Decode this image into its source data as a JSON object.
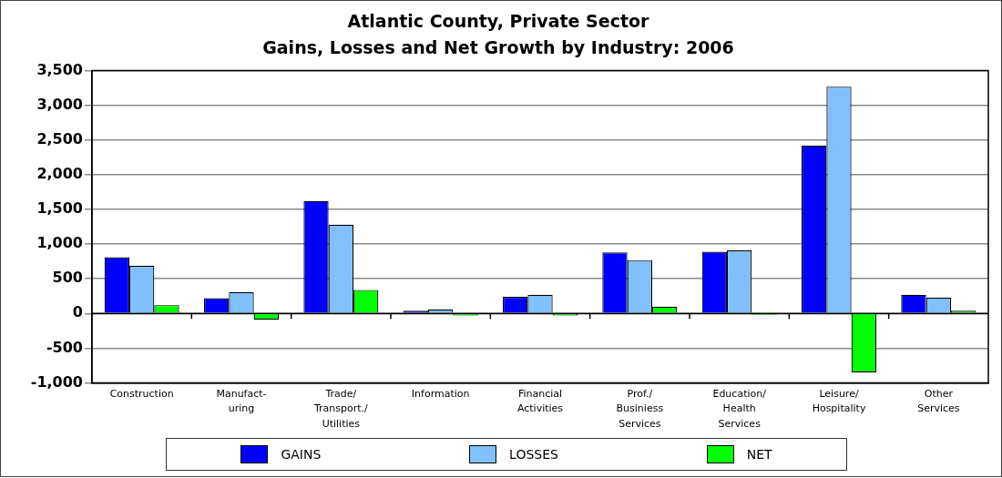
{
  "chart_data": {
    "type": "bar",
    "title": "Atlantic County, Private Sector",
    "subtitle": "Gains, Losses and Net Growth by Industry: 2006",
    "categories": [
      "Construction",
      "Manufact-uring",
      "Trade/ Transport./ Utilities",
      "Information",
      "Financial Activities",
      "Prof./ Businiess Services",
      "Education/ Health Services",
      "Leisure/ Hospitality",
      "Other Services"
    ],
    "series": [
      {
        "name": "GAINS",
        "color": "#0000ff",
        "values": [
          810,
          220,
          1620,
          40,
          240,
          880,
          890,
          2420,
          270
        ]
      },
      {
        "name": "LOSSES",
        "color": "#80c0ff",
        "values": [
          690,
          310,
          1280,
          60,
          270,
          770,
          910,
          3270,
          230
        ]
      },
      {
        "name": "NET",
        "color": "#00ff00",
        "values": [
          120,
          -90,
          340,
          -30,
          -30,
          100,
          -20,
          -850,
          40
        ]
      }
    ],
    "ylim": [
      -1000,
      3500
    ],
    "yticks": [
      {
        "value": -1000,
        "label": "-1,000"
      },
      {
        "value": -500,
        "label": "-500"
      },
      0,
      {
        "value": 500,
        "label": "500"
      },
      {
        "value": 1000,
        "label": "1,000"
      },
      {
        "value": 1500,
        "label": "1,500"
      },
      {
        "value": 2000,
        "label": "2,000"
      },
      {
        "value": 2500,
        "label": "2,500"
      },
      {
        "value": 3000,
        "label": "3,000"
      },
      {
        "value": 3500,
        "label": "3,500"
      }
    ],
    "grid": "y",
    "legend": "bottom"
  }
}
